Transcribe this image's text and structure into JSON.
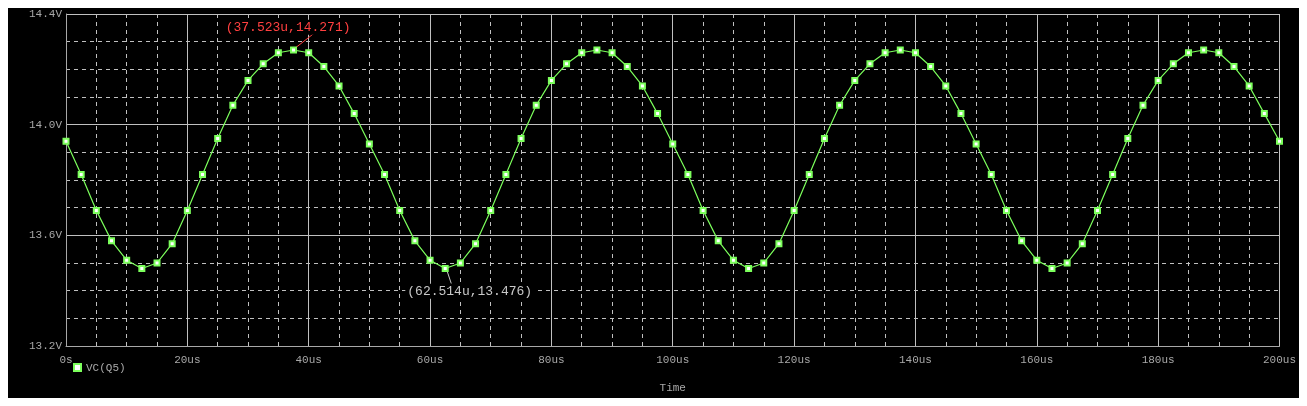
{
  "chart_data": {
    "type": "line",
    "xlabel": "Time",
    "legend": "bottom left",
    "grid": true,
    "marker": "square",
    "line_style": "solid",
    "xlim": [
      0,
      200
    ],
    "xticks": [
      {
        "value": 0,
        "label": "0s"
      },
      {
        "value": 20,
        "label": "20us"
      },
      {
        "value": 40,
        "label": "40us"
      },
      {
        "value": 60,
        "label": "60us"
      },
      {
        "value": 80,
        "label": "80us"
      },
      {
        "value": 100,
        "label": "100us"
      },
      {
        "value": 120,
        "label": "120us"
      },
      {
        "value": 140,
        "label": "140us"
      },
      {
        "value": 160,
        "label": "160us"
      },
      {
        "value": 180,
        "label": "180us"
      },
      {
        "value": 200,
        "label": "200us"
      }
    ],
    "ylim": [
      13.2,
      14.4
    ],
    "yticks": [
      {
        "value": 13.2,
        "label": "13.2V"
      },
      {
        "value": 13.6,
        "label": "13.6V"
      },
      {
        "value": 14.0,
        "label": "14.0V"
      },
      {
        "value": 14.4,
        "label": "14.4V"
      }
    ],
    "x": [
      0,
      2.5,
      5,
      7.5,
      10,
      12.5,
      15,
      17.5,
      20,
      22.5,
      25,
      27.5,
      30,
      32.5,
      35,
      37.5,
      40,
      42.5,
      45,
      47.5,
      50,
      52.5,
      55,
      57.5,
      60,
      62.5,
      65,
      67.5,
      70,
      72.5,
      75,
      77.5,
      80,
      82.5,
      85,
      87.5,
      90,
      92.5,
      95,
      97.5,
      100,
      102.5,
      105,
      107.5,
      110,
      112.5,
      115,
      117.5,
      120,
      122.5,
      125,
      127.5,
      130,
      132.5,
      135,
      137.5,
      140,
      142.5,
      145,
      147.5,
      150,
      152.5,
      155,
      157.5,
      160,
      162.5,
      165,
      167.5,
      170,
      172.5,
      175,
      177.5,
      180,
      182.5,
      185,
      187.5,
      190,
      192.5,
      195,
      197.5,
      200
    ],
    "series": [
      {
        "name": "VC(Q5)",
        "color": "#7cff5c",
        "values": [
          13.94,
          13.82,
          13.69,
          13.58,
          13.51,
          13.48,
          13.5,
          13.57,
          13.69,
          13.82,
          13.95,
          14.07,
          14.16,
          14.22,
          14.26,
          14.27,
          14.26,
          14.21,
          14.14,
          14.04,
          13.93,
          13.82,
          13.69,
          13.58,
          13.51,
          13.48,
          13.5,
          13.57,
          13.69,
          13.82,
          13.95,
          14.07,
          14.16,
          14.22,
          14.26,
          14.27,
          14.26,
          14.21,
          14.14,
          14.04,
          13.93,
          13.82,
          13.69,
          13.58,
          13.51,
          13.48,
          13.5,
          13.57,
          13.69,
          13.82,
          13.95,
          14.07,
          14.16,
          14.22,
          14.26,
          14.27,
          14.26,
          14.21,
          14.14,
          14.04,
          13.93,
          13.82,
          13.69,
          13.58,
          13.51,
          13.48,
          13.5,
          13.57,
          13.69,
          13.82,
          13.95,
          14.07,
          14.16,
          14.22,
          14.26,
          14.27,
          14.26,
          14.21,
          14.14,
          14.04,
          13.94
        ]
      }
    ],
    "annotations": [
      {
        "text": "(37.523u,14.271)",
        "x": 37.523,
        "y": 14.271
      },
      {
        "text": "(62.514u,13.476)",
        "x": 62.514,
        "y": 13.476
      }
    ]
  }
}
